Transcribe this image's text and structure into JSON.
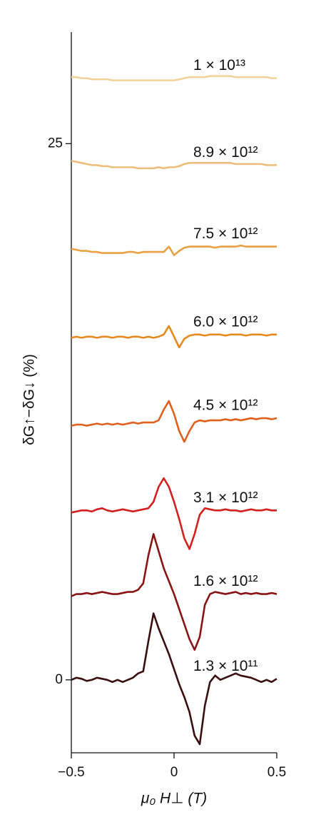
{
  "chart_data": {
    "type": "line",
    "ylabel": "δG↑−δG↓ (%)",
    "xlabel": "μ₀ H⊥ (T)",
    "xlim": [
      -0.5,
      0.5
    ],
    "ylim": [
      -3.4,
      30.2
    ],
    "xticks": [
      {
        "value": -0.5,
        "label": "−0.5"
      },
      0,
      0.5
    ],
    "yticks": [
      0,
      25
    ],
    "x": [
      -0.5,
      -0.475,
      -0.45,
      -0.425,
      -0.4,
      -0.375,
      -0.35,
      -0.325,
      -0.3,
      -0.275,
      -0.25,
      -0.225,
      -0.2,
      -0.175,
      -0.15,
      -0.125,
      -0.1,
      -0.075,
      -0.05,
      -0.025,
      0,
      0.025,
      0.05,
      0.075,
      0.1,
      0.125,
      0.15,
      0.175,
      0.2,
      0.225,
      0.25,
      0.275,
      0.3,
      0.325,
      0.35,
      0.375,
      0.4,
      0.425,
      0.45,
      0.475,
      0.5
    ],
    "series": [
      {
        "name": "1 × 10¹³",
        "color": "#f3d29a",
        "values": [
          28.1,
          28.1,
          28.05,
          28.05,
          28.0,
          28.0,
          28.0,
          28.0,
          27.95,
          27.95,
          27.95,
          27.95,
          27.95,
          27.95,
          27.95,
          27.95,
          27.95,
          27.95,
          27.95,
          27.95,
          27.95,
          28.0,
          28.05,
          28.1,
          28.1,
          28.1,
          28.1,
          28.15,
          28.15,
          28.15,
          28.15,
          28.15,
          28.1,
          28.1,
          28.1,
          28.1,
          28.1,
          28.1,
          28.1,
          28.05,
          28.05
        ]
      },
      {
        "name": "8.9 × 10¹²",
        "color": "#efbd7a",
        "values": [
          24.2,
          24.15,
          24.1,
          24.05,
          24.0,
          24.0,
          23.95,
          23.95,
          23.9,
          23.9,
          23.9,
          23.9,
          23.9,
          23.85,
          23.85,
          23.85,
          23.85,
          23.9,
          23.85,
          23.9,
          23.9,
          23.95,
          24.05,
          24.1,
          24.1,
          24.1,
          24.1,
          24.1,
          24.1,
          24.1,
          24.1,
          24.1,
          24.05,
          24.05,
          24.05,
          24.05,
          24.05,
          24.05,
          24.0,
          24.0,
          24.0
        ]
      },
      {
        "name": "7.5 × 10¹²",
        "color": "#eaa043",
        "values": [
          20.1,
          20.05,
          20.0,
          20.0,
          19.95,
          19.95,
          19.9,
          19.9,
          19.9,
          19.9,
          19.9,
          19.95,
          19.95,
          19.9,
          19.95,
          19.95,
          19.95,
          19.95,
          19.95,
          20.2,
          19.8,
          20.0,
          20.15,
          20.2,
          20.2,
          20.2,
          20.2,
          20.2,
          20.15,
          20.2,
          20.2,
          20.2,
          20.2,
          20.25,
          20.2,
          20.2,
          20.2,
          20.2,
          20.2,
          20.2,
          20.2
        ]
      },
      {
        "name": "6.0 × 10¹²",
        "color": "#e8891e",
        "values": [
          15.95,
          16.0,
          15.95,
          16.0,
          16.0,
          15.95,
          16.0,
          16.0,
          15.95,
          16.0,
          16.0,
          15.95,
          16.0,
          16.0,
          15.95,
          16.0,
          15.95,
          16.0,
          16.1,
          16.5,
          16.0,
          15.5,
          15.9,
          16.05,
          16.1,
          16.1,
          16.05,
          16.1,
          16.1,
          16.1,
          16.05,
          16.1,
          16.1,
          16.1,
          16.05,
          16.1,
          16.1,
          16.1,
          16.05,
          16.1,
          16.1
        ]
      },
      {
        "name": "4.5 × 10¹²",
        "color": "#e0601c",
        "values": [
          11.85,
          11.9,
          11.9,
          11.85,
          11.9,
          11.95,
          11.9,
          11.95,
          11.9,
          11.95,
          11.9,
          11.95,
          12.0,
          11.95,
          12.0,
          12.0,
          12.0,
          12.1,
          12.6,
          13.0,
          12.4,
          11.6,
          11.1,
          11.6,
          12.0,
          12.1,
          12.05,
          12.1,
          12.1,
          12.1,
          12.15,
          12.1,
          12.15,
          12.1,
          12.15,
          12.2,
          12.15,
          12.2,
          12.2,
          12.15,
          12.2
        ]
      },
      {
        "name": "3.1 × 10¹²",
        "color": "#d4201f",
        "values": [
          7.8,
          7.85,
          7.9,
          7.9,
          7.85,
          7.95,
          8.0,
          7.9,
          7.85,
          7.9,
          7.95,
          7.9,
          7.85,
          7.9,
          7.95,
          8.0,
          8.3,
          9.0,
          9.4,
          9.0,
          8.3,
          7.5,
          6.6,
          6.1,
          6.8,
          7.7,
          8.0,
          7.95,
          7.9,
          7.9,
          7.95,
          7.9,
          7.9,
          7.85,
          7.9,
          7.95,
          7.9,
          7.9,
          7.95,
          7.9,
          7.9
        ]
      },
      {
        "name": "1.6 × 10¹²",
        "color": "#8a1414",
        "values": [
          3.9,
          4.0,
          4.0,
          4.05,
          4.0,
          4.05,
          4.1,
          4.05,
          4.0,
          4.0,
          4.05,
          4.1,
          4.1,
          4.2,
          4.5,
          5.8,
          6.8,
          6.0,
          5.2,
          4.6,
          4.0,
          3.3,
          2.6,
          1.9,
          1.4,
          2.0,
          3.5,
          4.0,
          4.1,
          4.05,
          4.0,
          4.05,
          4.1,
          4.0,
          4.05,
          4.0,
          4.05,
          4.0,
          4.0,
          4.05,
          4.0
        ]
      },
      {
        "name": "1.3 × 10¹¹",
        "color": "#3a0f0f",
        "values": [
          0.0,
          0.1,
          0.05,
          -0.05,
          0.0,
          0.1,
          0.05,
          0.0,
          -0.1,
          0.0,
          -0.1,
          0.0,
          0.1,
          0.3,
          0.4,
          1.8,
          3.1,
          2.4,
          1.8,
          1.2,
          0.5,
          -0.2,
          -0.8,
          -1.5,
          -2.6,
          -3.0,
          -1.2,
          -0.1,
          0.2,
          0.0,
          0.1,
          0.2,
          0.3,
          0.2,
          0.15,
          0.1,
          0.0,
          -0.1,
          0.0,
          -0.1,
          0.05
        ]
      }
    ]
  }
}
